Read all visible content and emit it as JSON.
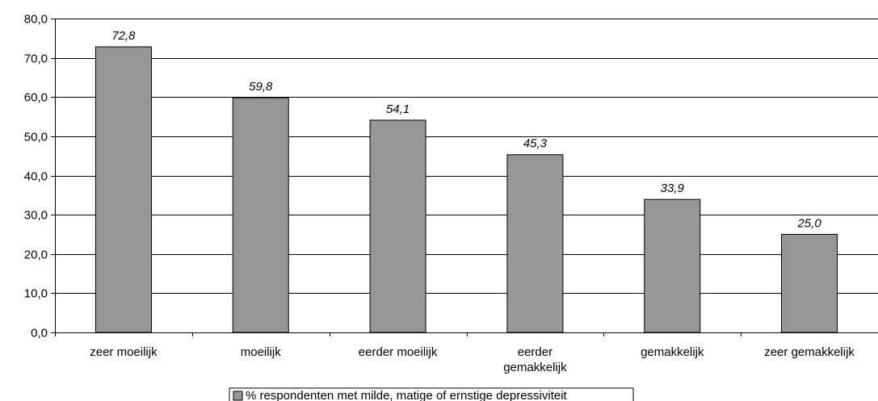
{
  "chart_data": {
    "type": "bar",
    "title": "",
    "xlabel": "",
    "ylabel": "",
    "categories": [
      [
        "zeer moeilijk"
      ],
      [
        "moeilijk"
      ],
      [
        "eerder moeilijk"
      ],
      [
        "eerder",
        "gemakkelijk"
      ],
      [
        "gemakkelijk"
      ],
      [
        "zeer gemakkelijk"
      ]
    ],
    "series": [
      {
        "name": "% respondenten met milde, matige of ernstige depressiviteit",
        "values": [
          72.8,
          59.8,
          54.1,
          45.3,
          33.9,
          25.0
        ],
        "data_labels": [
          "72,8",
          "59,8",
          "54,1",
          "45,3",
          "33,9",
          "25,0"
        ],
        "color": "#969696"
      }
    ],
    "ylim": [
      0,
      80
    ],
    "yticks": [
      0,
      10,
      20,
      30,
      40,
      50,
      60,
      70,
      80
    ],
    "ytick_labels": [
      "0,0",
      "10,0",
      "20,0",
      "30,0",
      "40,0",
      "50,0",
      "60,0",
      "70,0",
      "80,0"
    ],
    "grid": true,
    "legend_position": "bottom-center"
  }
}
